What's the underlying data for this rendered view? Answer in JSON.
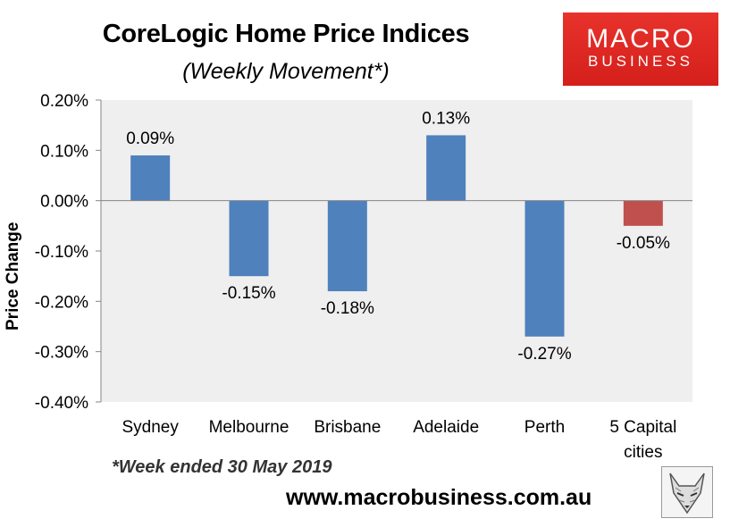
{
  "header": {
    "title": "CoreLogic Home Price Indices",
    "subtitle": "(Weekly Movement*)"
  },
  "logo": {
    "line1": "MACRO",
    "line2": "BUSINESS",
    "color": "#d7221e"
  },
  "footer": {
    "footnote": "*Week ended 30 May 2019",
    "url": "www.macrobusiness.com.au"
  },
  "chart_data": {
    "type": "bar",
    "title": "CoreLogic Home Price Indices",
    "subtitle": "(Weekly Movement*)",
    "ylabel": "Price Change",
    "xlabel": "",
    "categories": [
      "Sydney",
      "Melbourne",
      "Brisbane",
      "Adelaide",
      "Perth",
      "5 Capital cities"
    ],
    "category_labels": [
      [
        "Sydney"
      ],
      [
        "Melbourne"
      ],
      [
        "Brisbane"
      ],
      [
        "Adelaide"
      ],
      [
        "Perth"
      ],
      [
        "5 Capital",
        "cities"
      ]
    ],
    "values": [
      0.09,
      -0.15,
      -0.18,
      0.13,
      -0.27,
      -0.05
    ],
    "data_labels": [
      "0.09%",
      "-0.15%",
      "-0.18%",
      "0.13%",
      "-0.27%",
      "-0.05%"
    ],
    "bar_colors": [
      "#4f81bd",
      "#4f81bd",
      "#4f81bd",
      "#4f81bd",
      "#4f81bd",
      "#c0504d"
    ],
    "ylim": [
      -0.4,
      0.2
    ],
    "yticks": [
      0.2,
      0.1,
      0.0,
      -0.1,
      -0.2,
      -0.3,
      -0.4
    ],
    "ytick_labels": [
      "0.20%",
      "0.10%",
      "0.00%",
      "-0.10%",
      "-0.20%",
      "-0.30%",
      "-0.40%"
    ],
    "plot_background": "#efefef",
    "grid": false,
    "legend": "none"
  }
}
